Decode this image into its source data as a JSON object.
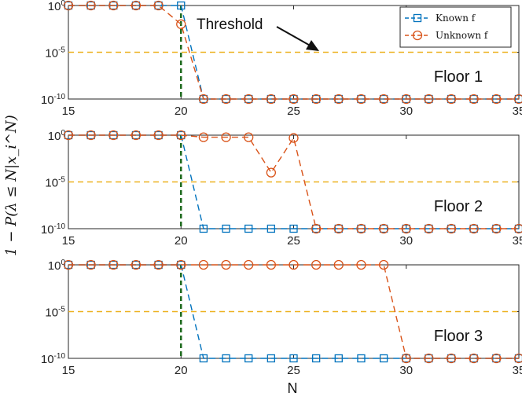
{
  "chart_data": [
    {
      "type": "line",
      "panel_label": "Floor 1",
      "x": [
        15,
        16,
        17,
        18,
        19,
        20,
        21,
        22,
        23,
        24,
        25,
        26,
        27,
        28,
        29,
        30,
        31,
        32,
        33,
        34,
        35
      ],
      "xlim": [
        15,
        35
      ],
      "ylim_exponent": [
        -10,
        0
      ],
      "yscale": "log",
      "yticks": [
        "10^0",
        "10^-5",
        "10^-10"
      ],
      "xticks": [
        "15",
        "20",
        "25",
        "30",
        "35"
      ],
      "series": [
        {
          "name": "Known f",
          "color": "#0072BD",
          "marker": "square",
          "values": [
            1,
            1,
            1,
            1,
            1,
            1,
            1e-10,
            1e-10,
            1e-10,
            1e-10,
            1e-10,
            1e-10,
            1e-10,
            1e-10,
            1e-10,
            1e-10,
            1e-10,
            1e-10,
            1e-10,
            1e-10,
            1e-10
          ]
        },
        {
          "name": "Unknown f",
          "color": "#D95319",
          "marker": "circle",
          "values": [
            1,
            1,
            1,
            1,
            1,
            0.01,
            1e-10,
            1e-10,
            1e-10,
            1e-10,
            1e-10,
            1e-10,
            1e-10,
            1e-10,
            1e-10,
            1e-10,
            1e-10,
            1e-10,
            1e-10,
            1e-10,
            1e-10
          ]
        }
      ],
      "threshold": {
        "value": 1e-05,
        "color": "#EDB120"
      },
      "vline": {
        "x": 20,
        "color": "#1F6B1F"
      },
      "annotation": "Threshold",
      "legend": {
        "position": "top-right",
        "entries": [
          "Known f",
          "Unknown f"
        ]
      }
    },
    {
      "type": "line",
      "panel_label": "Floor 2",
      "x": [
        15,
        16,
        17,
        18,
        19,
        20,
        21,
        22,
        23,
        24,
        25,
        26,
        27,
        28,
        29,
        30,
        31,
        32,
        33,
        34,
        35
      ],
      "xlim": [
        15,
        35
      ],
      "ylim_exponent": [
        -10,
        0
      ],
      "yscale": "log",
      "yticks": [
        "10^0",
        "10^-5",
        "10^-10"
      ],
      "xticks": [
        "15",
        "20",
        "25",
        "30",
        "35"
      ],
      "series": [
        {
          "name": "Known f",
          "color": "#0072BD",
          "marker": "square",
          "values": [
            1,
            1,
            1,
            1,
            1,
            1,
            1e-10,
            1e-10,
            1e-10,
            1e-10,
            1e-10,
            1e-10,
            1e-10,
            1e-10,
            1e-10,
            1e-10,
            1e-10,
            1e-10,
            1e-10,
            1e-10,
            1e-10
          ]
        },
        {
          "name": "Unknown f",
          "color": "#D95319",
          "marker": "circle",
          "values": [
            1,
            1,
            1,
            1,
            1,
            1,
            0.6,
            0.6,
            0.6,
            0.0001,
            0.5,
            1e-10,
            1e-10,
            1e-10,
            1e-10,
            1e-10,
            1e-10,
            1e-10,
            1e-10,
            1e-10,
            1e-10
          ]
        }
      ],
      "threshold": {
        "value": 1e-05,
        "color": "#EDB120"
      },
      "vline": {
        "x": 20,
        "color": "#1F6B1F"
      }
    },
    {
      "type": "line",
      "panel_label": "Floor 3",
      "x": [
        15,
        16,
        17,
        18,
        19,
        20,
        21,
        22,
        23,
        24,
        25,
        26,
        27,
        28,
        29,
        30,
        31,
        32,
        33,
        34,
        35
      ],
      "xlim": [
        15,
        35
      ],
      "ylim_exponent": [
        -10,
        0
      ],
      "yscale": "log",
      "yticks": [
        "10^0",
        "10^-5",
        "10^-10"
      ],
      "xticks": [
        "15",
        "20",
        "25",
        "30",
        "35"
      ],
      "xlabel": "N",
      "series": [
        {
          "name": "Known f",
          "color": "#0072BD",
          "marker": "square",
          "values": [
            1,
            1,
            1,
            1,
            1,
            1,
            1e-10,
            1e-10,
            1e-10,
            1e-10,
            1e-10,
            1e-10,
            1e-10,
            1e-10,
            1e-10,
            1e-10,
            1e-10,
            1e-10,
            1e-10,
            1e-10,
            1e-10
          ]
        },
        {
          "name": "Unknown f",
          "color": "#D95319",
          "marker": "circle",
          "values": [
            1,
            1,
            1,
            1,
            1,
            1,
            1,
            1,
            1,
            1,
            1,
            1,
            1,
            1,
            1,
            1e-10,
            1e-10,
            1e-10,
            1e-10,
            1e-10,
            1e-10
          ]
        }
      ],
      "threshold": {
        "value": 1e-05,
        "color": "#EDB120"
      },
      "vline": {
        "x": 20,
        "color": "#1F6B1F"
      }
    }
  ],
  "ylabel_text": "1 − P(λ ≤ N|x_i^N)"
}
